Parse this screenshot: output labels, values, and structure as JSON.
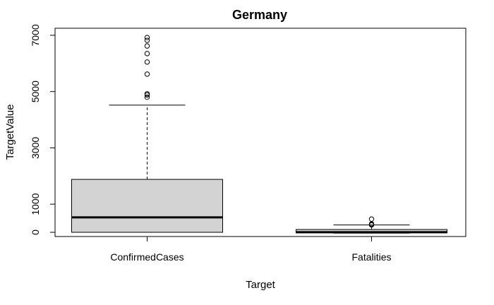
{
  "chart_data": {
    "type": "box",
    "title": "Germany",
    "xlabel": "Target",
    "ylabel": "TargetValue",
    "categories": [
      "ConfirmedCases",
      "Fatalities"
    ],
    "ylim": [
      -150,
      7250
    ],
    "yticks": [
      0,
      1000,
      3000,
      5000,
      7000
    ],
    "box_fill": "#d3d3d3",
    "boxes": [
      {
        "category": "ConfirmedCases",
        "whisker_low": 0,
        "q1": 0,
        "median": 530,
        "q3": 1880,
        "whisker_high": 4520,
        "outliers": [
          4800,
          4880,
          4920,
          5620,
          6050,
          6350,
          6620,
          6820,
          6920
        ]
      },
      {
        "category": "Fatalities",
        "whisker_low": -30,
        "q1": -20,
        "median": 5,
        "q3": 100,
        "whisker_high": 260,
        "outliers": [
          260,
          280,
          300,
          470
        ]
      }
    ]
  }
}
